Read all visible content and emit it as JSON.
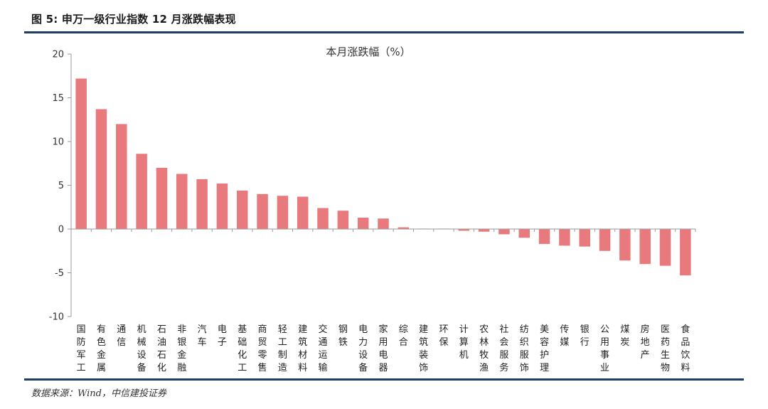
{
  "figure": {
    "title": "图 5: 申万一级行业指数 12 月涨跌幅表现",
    "source": "数据来源：Wind，中信建投证券"
  },
  "colors": {
    "bar": "#e8797c",
    "rule": "#1e3d63",
    "axis": "#9a9a9a"
  },
  "chart_data": {
    "type": "bar",
    "title": "本月涨跌幅（%）",
    "xlabel": "",
    "ylabel": "",
    "ylim": [
      -10,
      20
    ],
    "yticks": [
      -10,
      -5,
      0,
      5,
      10,
      15,
      20
    ],
    "grid": false,
    "legend": "none",
    "categories": [
      "国防军工",
      "有色金属",
      "通信",
      "机械设备",
      "石油石化",
      "非银金融",
      "汽车",
      "电子",
      "基础化工",
      "商贸零售",
      "轻工制造",
      "建筑材料",
      "交通运输",
      "钢铁",
      "电力设备",
      "家用电器",
      "综合",
      "建筑装饰",
      "环保",
      "计算机",
      "农林牧渔",
      "社会服务",
      "纺织服饰",
      "美容护理",
      "传媒",
      "银行",
      "公用事业",
      "煤炭",
      "房地产",
      "医药生物",
      "食品饮料"
    ],
    "values": [
      17.2,
      13.7,
      12.0,
      8.6,
      7.0,
      6.3,
      5.7,
      5.2,
      4.4,
      4.0,
      3.8,
      3.7,
      2.4,
      2.1,
      1.3,
      1.2,
      0.2,
      0.05,
      0.05,
      -0.2,
      -0.3,
      -0.6,
      -1.0,
      -1.7,
      -1.9,
      -2.0,
      -2.5,
      -3.6,
      -4.0,
      -4.2,
      -5.3
    ]
  }
}
